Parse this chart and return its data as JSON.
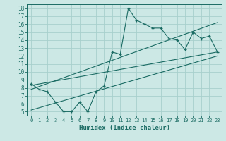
{
  "title": "",
  "xlabel": "Humidex (Indice chaleur)",
  "bg_color": "#cce8e5",
  "grid_color": "#a8d0cc",
  "line_color": "#1a6b63",
  "xlim": [
    -0.5,
    23.5
  ],
  "ylim": [
    4.5,
    18.5
  ],
  "xticks": [
    0,
    1,
    2,
    3,
    4,
    5,
    6,
    7,
    8,
    9,
    10,
    11,
    12,
    13,
    14,
    15,
    16,
    17,
    18,
    19,
    20,
    21,
    22,
    23
  ],
  "yticks": [
    5,
    6,
    7,
    8,
    9,
    10,
    11,
    12,
    13,
    14,
    15,
    16,
    17,
    18
  ],
  "data_x": [
    0,
    1,
    2,
    3,
    4,
    5,
    6,
    7,
    8,
    9,
    10,
    11,
    12,
    13,
    14,
    15,
    16,
    17,
    18,
    19,
    20,
    21,
    22,
    23
  ],
  "data_y": [
    8.5,
    7.8,
    7.5,
    6.2,
    5.0,
    5.0,
    6.2,
    5.0,
    7.5,
    8.2,
    12.5,
    12.2,
    18.0,
    16.5,
    16.0,
    15.5,
    15.5,
    14.2,
    14.0,
    12.8,
    15.0,
    14.2,
    14.5,
    12.5
  ],
  "trend1_x": [
    0,
    23
  ],
  "trend1_y": [
    8.3,
    12.5
  ],
  "trend2_x": [
    0,
    23
  ],
  "trend2_y": [
    7.8,
    16.2
  ],
  "trend3_x": [
    0,
    23
  ],
  "trend3_y": [
    5.2,
    12.0
  ]
}
